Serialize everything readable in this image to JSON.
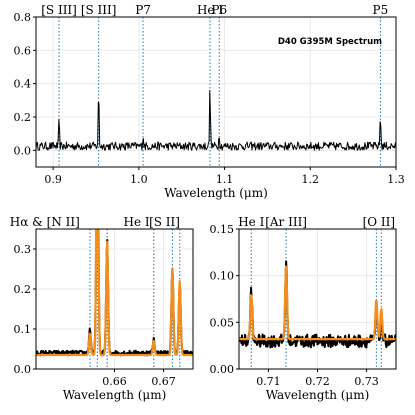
{
  "chart_data": [
    {
      "type": "line",
      "id": "top",
      "title": "D40 G395M Spectrum",
      "xlabel": "Wavelength (μm)",
      "ylabel": "",
      "xlim": [
        0.88,
        1.3
      ],
      "ylim": [
        -0.1,
        0.8
      ],
      "xticks": [
        0.9,
        1.0,
        1.1,
        1.2,
        1.3
      ],
      "xtick_labels": [
        "0.9",
        "1.0",
        "1.1",
        "1.2",
        "1.3"
      ],
      "yticks": [
        0.0,
        0.2,
        0.4,
        0.6,
        0.8
      ],
      "ytick_labels": [
        "0.0",
        "0.2",
        "0.4",
        "0.6",
        "0.8"
      ],
      "grid": true,
      "series": [
        {
          "color": "#000000",
          "baseline": 0.025,
          "noise": 0.025,
          "peaks": [
            {
              "x": 0.9069,
              "y": 0.18
            },
            {
              "x": 0.9531,
              "y": 0.37
            },
            {
              "x": 1.0049,
              "y": 0.09
            },
            {
              "x": 1.083,
              "y": 0.39
            },
            {
              "x": 1.0938,
              "y": 0.1
            },
            {
              "x": 1.2818,
              "y": 0.22
            }
          ]
        }
      ],
      "lines": [
        {
          "x": 0.9069,
          "label": "[S III]"
        },
        {
          "x": 0.9531,
          "label": "[S III]"
        },
        {
          "x": 1.0049,
          "label": "P7"
        },
        {
          "x": 1.083,
          "label": "He I"
        },
        {
          "x": 1.0938,
          "label": "P6"
        },
        {
          "x": 1.2818,
          "label": "P5"
        }
      ],
      "line_color": "#1f77b4"
    },
    {
      "type": "line",
      "id": "left",
      "title": "",
      "xlabel": "Wavelength (μm)",
      "ylabel": "",
      "xlim": [
        0.644,
        0.676
      ],
      "ylim": [
        0.0,
        0.35
      ],
      "xticks": [
        0.66,
        0.67
      ],
      "xtick_labels": [
        "0.66",
        "0.67"
      ],
      "yticks": [
        0.0,
        0.1,
        0.2,
        0.3
      ],
      "ytick_labels": [
        "0.0",
        "0.1",
        "0.2",
        "0.3"
      ],
      "grid": true,
      "series": [
        {
          "color": "#000000",
          "baseline": 0.04,
          "noise": 0.006,
          "peaks": [
            {
              "x": 0.655,
              "y": 0.1
            },
            {
              "x": 0.6565,
              "y": 0.7
            },
            {
              "x": 0.6585,
              "y": 0.32
            },
            {
              "x": 0.668,
              "y": 0.075
            },
            {
              "x": 0.6718,
              "y": 0.25
            },
            {
              "x": 0.6733,
              "y": 0.22
            }
          ]
        },
        {
          "color": "#f28e1c",
          "baseline": 0.035,
          "noise": 0,
          "peaks": [
            {
              "x": 0.655,
              "y": 0.09
            },
            {
              "x": 0.6565,
              "y": 0.7
            },
            {
              "x": 0.6585,
              "y": 0.32
            },
            {
              "x": 0.668,
              "y": 0.07
            },
            {
              "x": 0.6718,
              "y": 0.25
            },
            {
              "x": 0.6733,
              "y": 0.22
            }
          ]
        }
      ],
      "lines": [
        {
          "x": 0.655,
          "label": ""
        },
        {
          "x": 0.6565,
          "label": ""
        },
        {
          "x": 0.6585,
          "label": ""
        },
        {
          "x": 0.668,
          "label": ""
        },
        {
          "x": 0.6718,
          "label": ""
        },
        {
          "x": 0.6733,
          "label": ""
        }
      ],
      "top_labels": [
        {
          "x": 0.6458,
          "text": "Hα &amp; [N II]"
        },
        {
          "x": 0.6645,
          "text": "He I"
        },
        {
          "x": 0.6702,
          "text": "[S II]"
        }
      ],
      "line_color": "#1f77b4"
    },
    {
      "type": "line",
      "id": "right",
      "title": "",
      "xlabel": "Wavelength (μm)",
      "ylabel": "",
      "xlim": [
        0.704,
        0.736
      ],
      "ylim": [
        0.0,
        0.15
      ],
      "xticks": [
        0.71,
        0.72,
        0.73
      ],
      "xtick_labels": [
        "0.71",
        "0.72",
        "0.73"
      ],
      "yticks": [
        0.0,
        0.05,
        0.1,
        0.15
      ],
      "ytick_labels": [
        "0.00",
        "0.05",
        "0.10",
        "0.15"
      ],
      "grid": true,
      "series": [
        {
          "color": "#000000",
          "baseline": 0.03,
          "noise": 0.007,
          "peaks": [
            {
              "x": 0.7065,
              "y": 0.085
            },
            {
              "x": 0.7136,
              "y": 0.113
            },
            {
              "x": 0.732,
              "y": 0.065
            },
            {
              "x": 0.733,
              "y": 0.055
            }
          ]
        },
        {
          "color": "#f28e1c",
          "baseline": 0.032,
          "noise": 0,
          "peaks": [
            {
              "x": 0.7065,
              "y": 0.08
            },
            {
              "x": 0.7136,
              "y": 0.11
            },
            {
              "x": 0.732,
              "y": 0.075
            },
            {
              "x": 0.733,
              "y": 0.065
            }
          ]
        }
      ],
      "lines": [
        {
          "x": 0.7065,
          "label": "He I"
        },
        {
          "x": 0.7136,
          "label": "[Ar III]"
        },
        {
          "x": 0.732,
          "label": ""
        },
        {
          "x": 0.733,
          "label": ""
        }
      ],
      "top_labels": [
        {
          "x": 0.7325,
          "text": "[O II]"
        }
      ],
      "line_color": "#1f77b4"
    }
  ]
}
